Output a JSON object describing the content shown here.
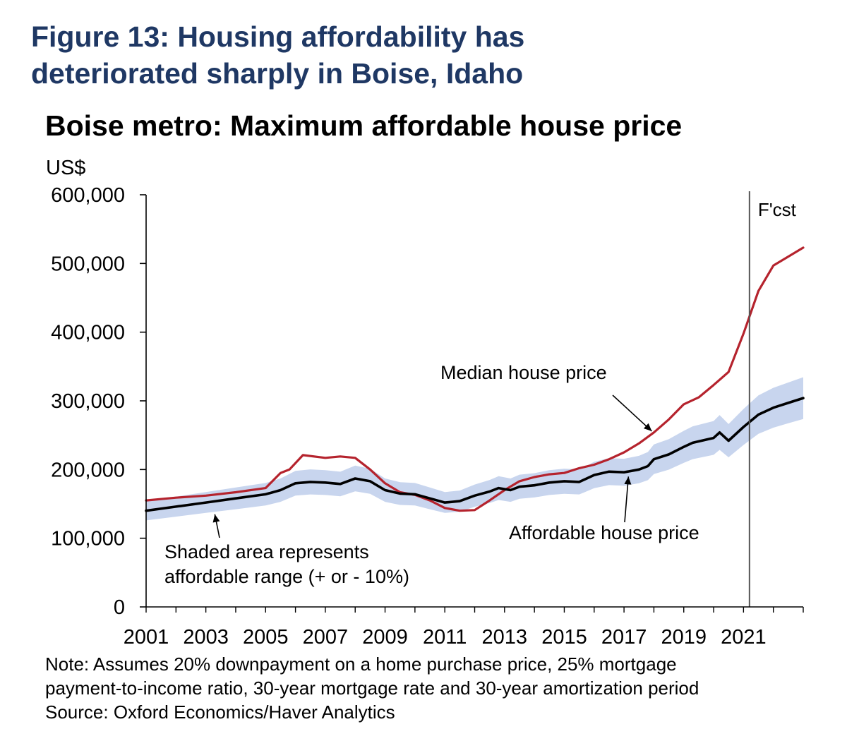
{
  "figure_title": {
    "line1": "Figure 13: Housing affordability has",
    "line2": "deteriorated sharply in Boise, Idaho"
  },
  "notes": {
    "note_line1": "Note: Assumes 20% downpayment on a home purchase price, 25% mortgage",
    "note_line2": "payment-to-income ratio, 30-year mortgage rate and 30-year amortization period",
    "source": "Source: Oxford Economics/Haver Analytics"
  },
  "colors": {
    "median": "#b5232d",
    "affordable": "#000000",
    "band": "#c8d5ee",
    "title": "#1f3864"
  },
  "chart_data": {
    "type": "line",
    "title": "Boise metro: Maximum affordable house price",
    "ylabel": "US$",
    "ylim": [
      0,
      600000
    ],
    "xlim": [
      2001,
      2023
    ],
    "yticks": [
      0,
      100000,
      200000,
      300000,
      400000,
      500000,
      600000
    ],
    "ytick_labels": [
      "0",
      "100,000",
      "200,000",
      "300,000",
      "400,000",
      "500,000",
      "600,000"
    ],
    "xticks": [
      2001,
      2003,
      2005,
      2007,
      2009,
      2011,
      2013,
      2015,
      2017,
      2019,
      2021
    ],
    "xtick_labels": [
      "2001",
      "2003",
      "2005",
      "2007",
      "2009",
      "2011",
      "2013",
      "2015",
      "2017",
      "2019",
      "2021"
    ],
    "forecast_start": 2021.2,
    "forecast_label": "F'cst",
    "band_pct": 10,
    "series": [
      {
        "name": "Median house price",
        "color": "#b5232d",
        "points": [
          [
            2001.0,
            155000
          ],
          [
            2002.0,
            159000
          ],
          [
            2003.0,
            162000
          ],
          [
            2004.0,
            167000
          ],
          [
            2005.0,
            173000
          ],
          [
            2005.5,
            195000
          ],
          [
            2005.8,
            200000
          ],
          [
            2006.25,
            221000
          ],
          [
            2007.0,
            217000
          ],
          [
            2007.5,
            219000
          ],
          [
            2008.0,
            217000
          ],
          [
            2008.5,
            200000
          ],
          [
            2009.0,
            180000
          ],
          [
            2009.5,
            167000
          ],
          [
            2010.0,
            163000
          ],
          [
            2010.5,
            155000
          ],
          [
            2011.0,
            144000
          ],
          [
            2011.5,
            140000
          ],
          [
            2012.0,
            141000
          ],
          [
            2012.5,
            155000
          ],
          [
            2013.0,
            170000
          ],
          [
            2013.5,
            183000
          ],
          [
            2014.0,
            189000
          ],
          [
            2014.5,
            193000
          ],
          [
            2015.0,
            195000
          ],
          [
            2015.5,
            202000
          ],
          [
            2016.0,
            207000
          ],
          [
            2016.5,
            215000
          ],
          [
            2017.0,
            225000
          ],
          [
            2017.5,
            238000
          ],
          [
            2018.0,
            254000
          ],
          [
            2018.5,
            273000
          ],
          [
            2019.0,
            295000
          ],
          [
            2019.5,
            305000
          ],
          [
            2020.0,
            323000
          ],
          [
            2020.5,
            342000
          ],
          [
            2021.0,
            398000
          ],
          [
            2021.5,
            460000
          ],
          [
            2022.0,
            497000
          ],
          [
            2022.5,
            510000
          ],
          [
            2023.0,
            523000
          ]
        ]
      },
      {
        "name": "Affordable house price",
        "color": "#000000",
        "points": [
          [
            2001.0,
            140000
          ],
          [
            2002.0,
            146000
          ],
          [
            2003.0,
            152000
          ],
          [
            2004.0,
            158000
          ],
          [
            2005.0,
            164000
          ],
          [
            2005.5,
            170000
          ],
          [
            2006.0,
            180000
          ],
          [
            2006.5,
            182000
          ],
          [
            2007.0,
            181000
          ],
          [
            2007.5,
            179000
          ],
          [
            2008.0,
            187000
          ],
          [
            2008.5,
            183000
          ],
          [
            2009.0,
            170000
          ],
          [
            2009.5,
            165000
          ],
          [
            2010.0,
            164000
          ],
          [
            2010.5,
            158000
          ],
          [
            2011.0,
            152000
          ],
          [
            2011.5,
            154000
          ],
          [
            2012.0,
            162000
          ],
          [
            2012.5,
            168000
          ],
          [
            2012.8,
            173000
          ],
          [
            2013.2,
            170000
          ],
          [
            2013.5,
            175000
          ],
          [
            2014.0,
            177000
          ],
          [
            2014.5,
            181000
          ],
          [
            2015.0,
            183000
          ],
          [
            2015.5,
            182000
          ],
          [
            2015.7,
            186000
          ],
          [
            2016.0,
            192000
          ],
          [
            2016.5,
            197000
          ],
          [
            2017.0,
            196000
          ],
          [
            2017.5,
            200000
          ],
          [
            2017.8,
            205000
          ],
          [
            2018.0,
            215000
          ],
          [
            2018.5,
            222000
          ],
          [
            2019.0,
            233000
          ],
          [
            2019.3,
            239000
          ],
          [
            2019.8,
            244000
          ],
          [
            2020.0,
            246000
          ],
          [
            2020.2,
            254000
          ],
          [
            2020.5,
            242000
          ],
          [
            2021.0,
            262000
          ],
          [
            2021.5,
            280000
          ],
          [
            2022.0,
            290000
          ],
          [
            2022.5,
            297000
          ],
          [
            2023.0,
            304000
          ]
        ]
      }
    ],
    "annotations": [
      {
        "text": "Median house price",
        "target": [
          2018.0,
          260000
        ]
      },
      {
        "text": "Affordable house price",
        "target": [
          2017.1,
          198000
        ]
      },
      {
        "text": "Shaded area represents",
        "target": [
          2003.3,
          141000
        ]
      },
      {
        "text": "affordable range (+ or - 10%)"
      }
    ]
  }
}
